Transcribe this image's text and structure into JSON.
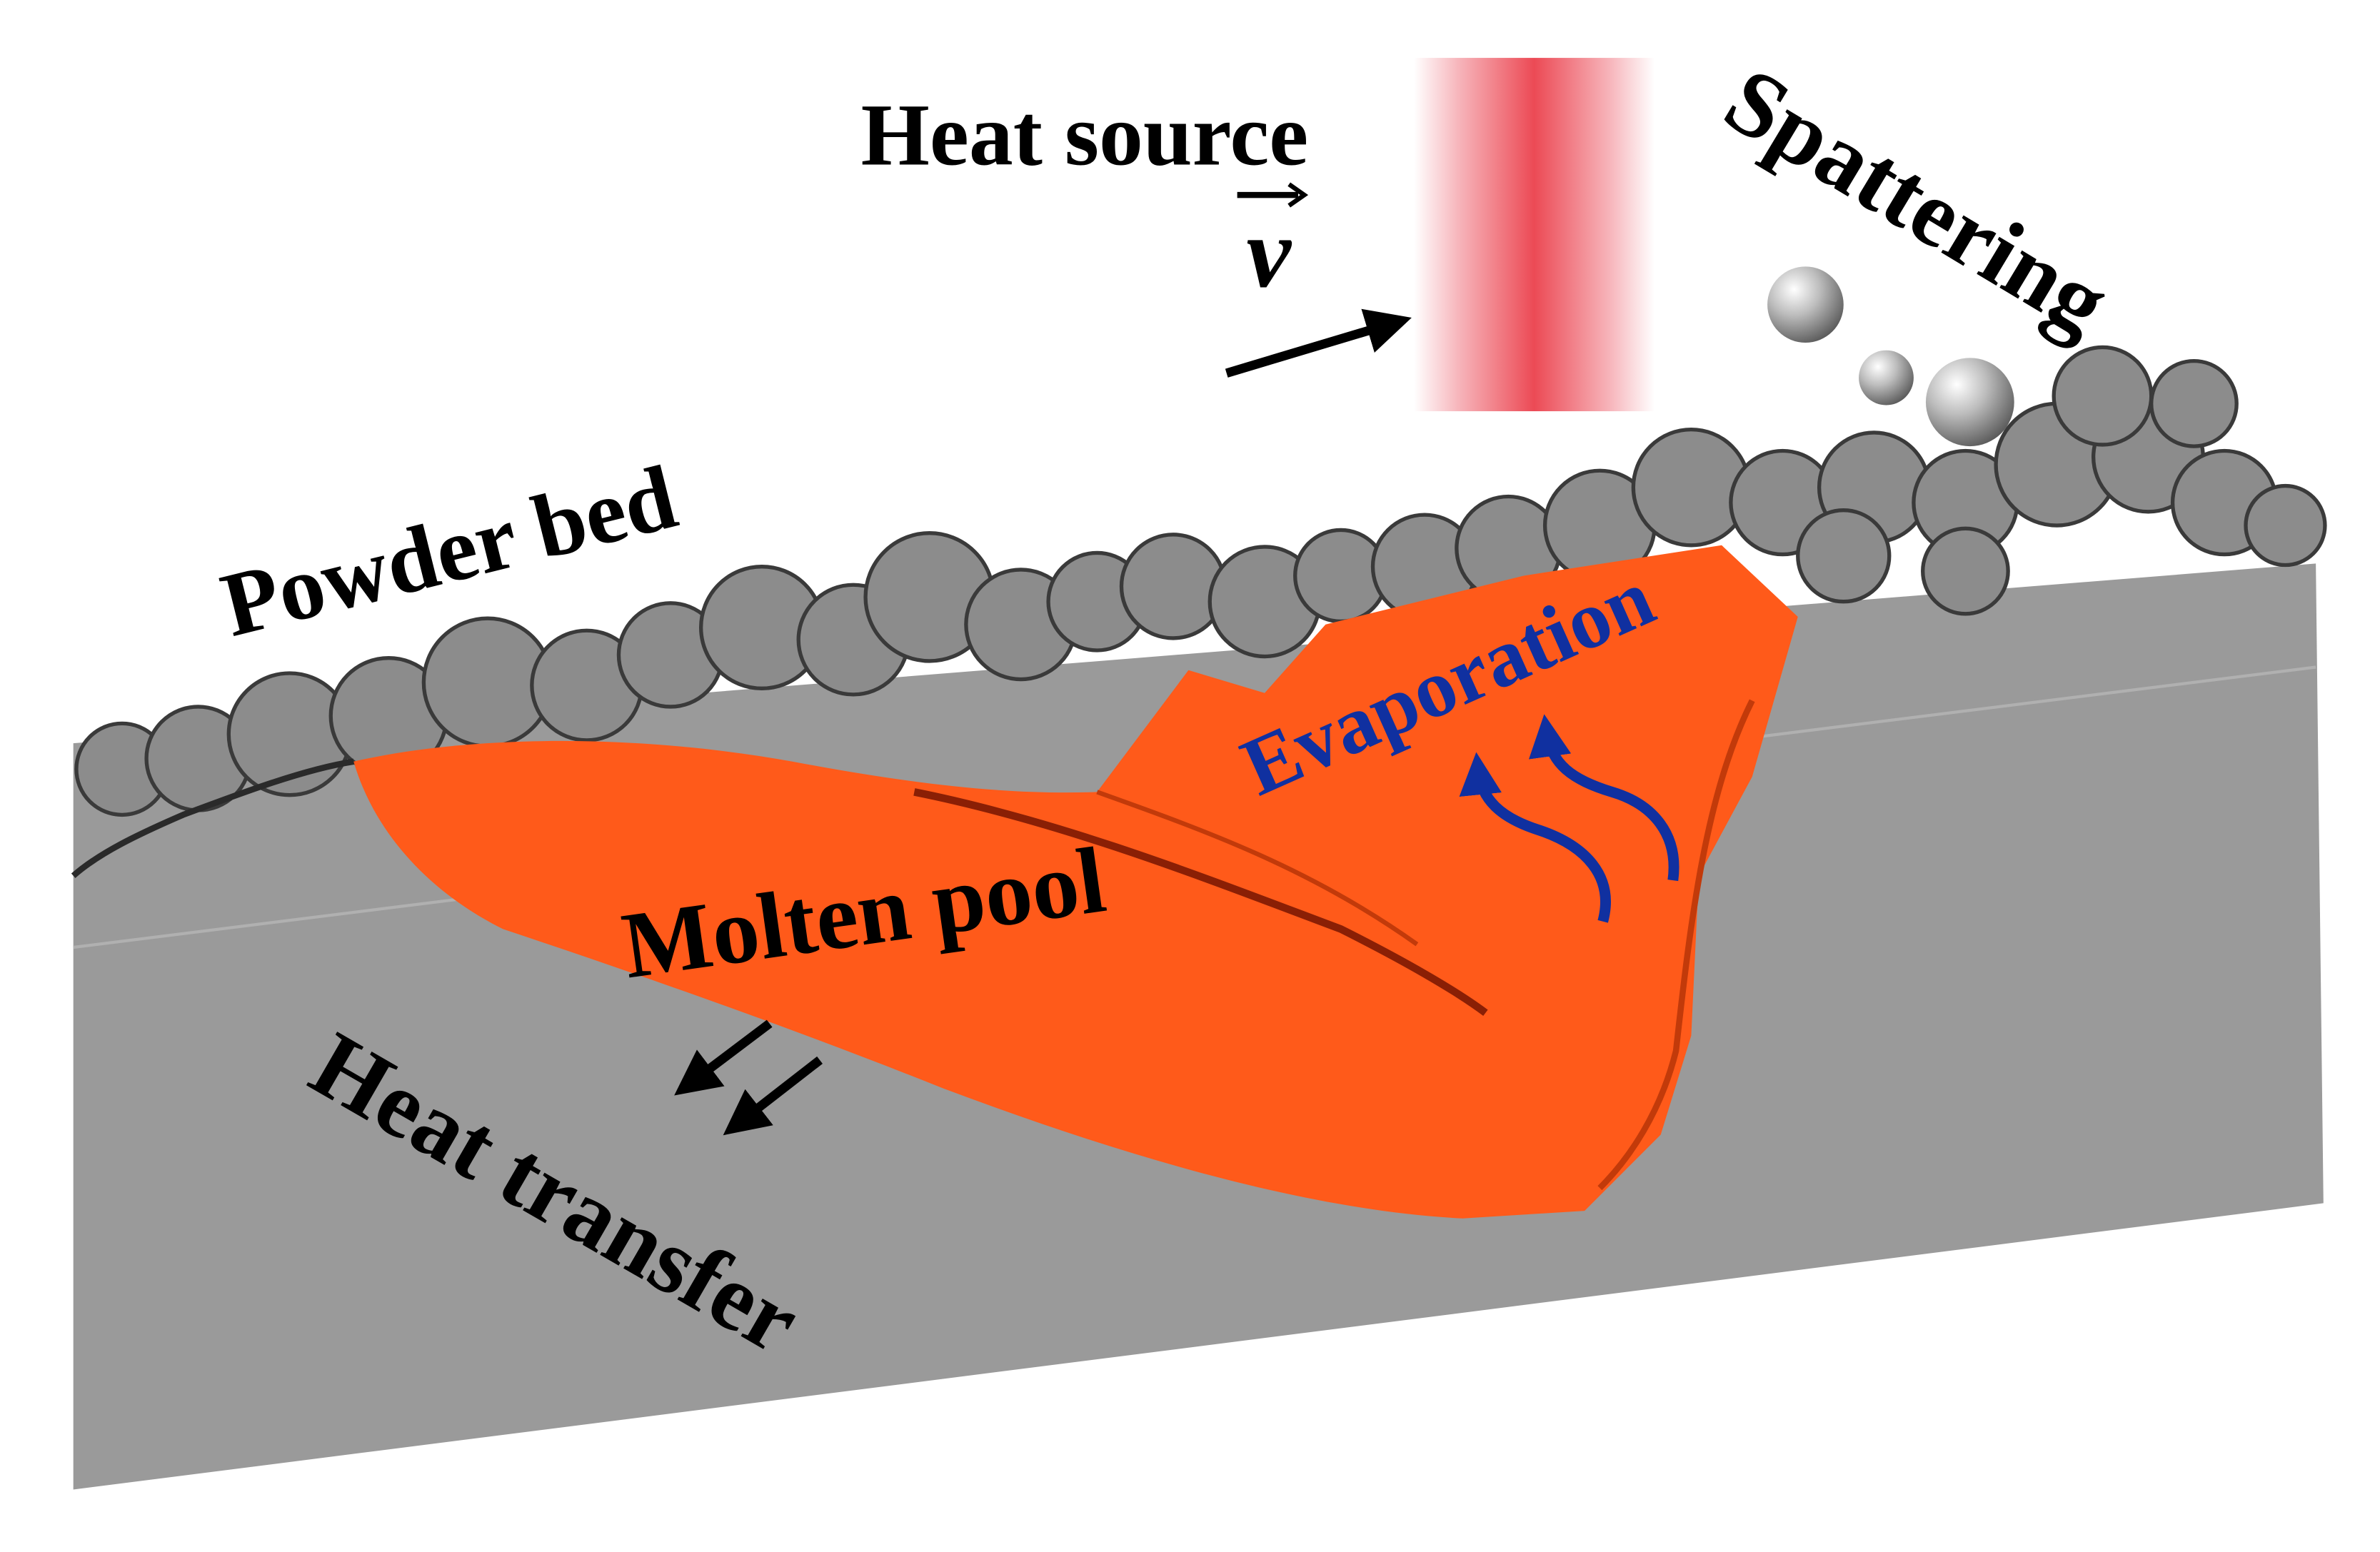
{
  "labels": {
    "heat_source": "Heat source",
    "velocity": "v",
    "spattering": "Spattering",
    "powder_bed": "Powder bed",
    "evaporation": "Evaporation",
    "molten_pool": "Molten pool",
    "heat_transfer": "Heat transfer"
  },
  "colors": {
    "substrate": "#9a9a9a",
    "powder": "#8c8c8c",
    "molten_pool": "#ff5a1a",
    "heat_source": "#ec4a55",
    "evaporation": "#1030a0",
    "text": "#000000"
  }
}
